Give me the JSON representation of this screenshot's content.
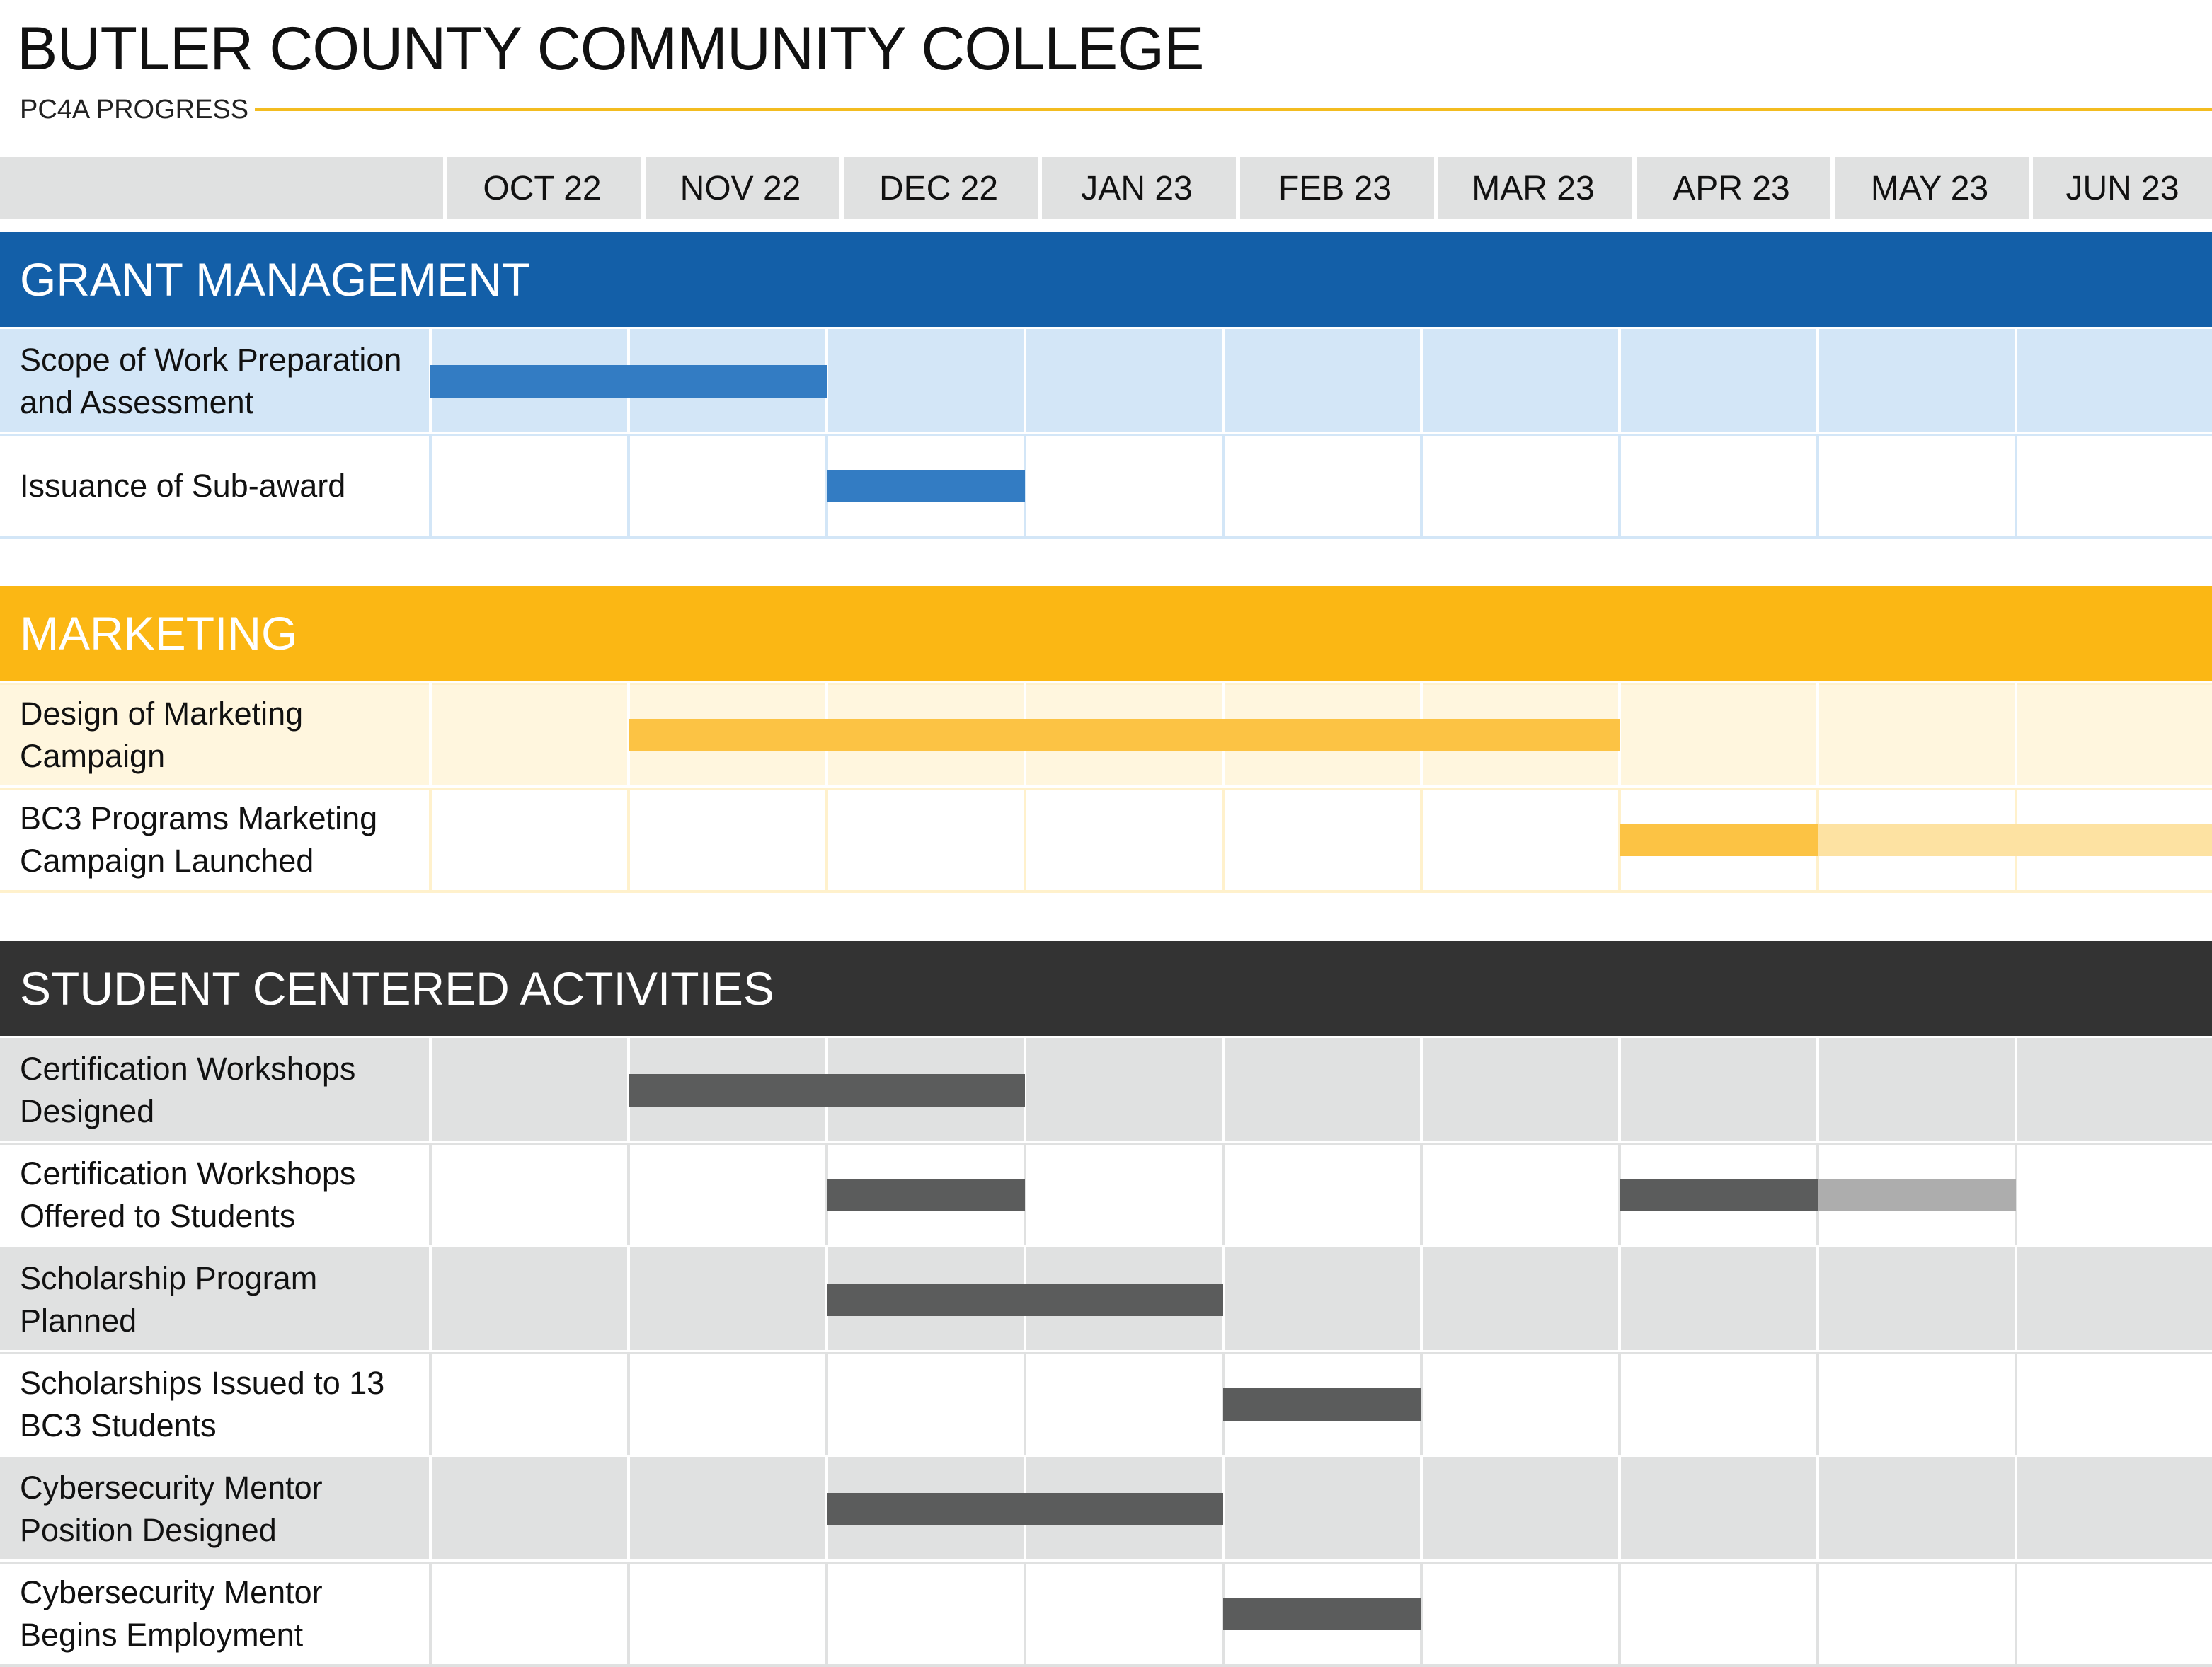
{
  "header": {
    "title": "BUTLER COUNTY COMMUNITY COLLEGE",
    "subtitle": "PC4A PROGRESS"
  },
  "chart_data": {
    "type": "gantt",
    "title": "BUTLER COUNTY COMMUNITY COLLEGE",
    "subtitle": "PC4A PROGRESS",
    "months": [
      "OCT 22",
      "NOV 22",
      "DEC 22",
      "JAN 23",
      "FEB 23",
      "MAR 23",
      "APR 23",
      "MAY 23",
      "JUN 23"
    ],
    "sections": [
      {
        "name": "GRANT MANAGEMENT",
        "color": "#135fa8",
        "bar_color": "#337cc3",
        "row_tint": "#d3e6f7",
        "grid_color": "#d3e6f7",
        "tasks": [
          {
            "name": "Scope of Work Preparation and Assessment",
            "lines": [
              "Scope of Work Preparation",
              "and Assessment"
            ],
            "segments": [
              {
                "start": 0,
                "end": 2,
                "status": "complete"
              }
            ]
          },
          {
            "name": "Issuance of Sub-award",
            "lines": [
              "Issuance of Sub-award"
            ],
            "segments": [
              {
                "start": 2,
                "end": 3,
                "status": "complete"
              }
            ]
          }
        ]
      },
      {
        "name": "MARKETING",
        "color": "#fbb714",
        "bar_color": "#fcc344",
        "light_bar_color": "#fde2a2",
        "row_tint": "#fff6de",
        "grid_color": "#fff1cc",
        "tasks": [
          {
            "name": "Design of Marketing Campaign",
            "lines": [
              "Design of Marketing",
              "Campaign"
            ],
            "segments": [
              {
                "start": 1,
                "end": 6,
                "status": "complete"
              }
            ]
          },
          {
            "name": "BC3 Programs Marketing Campaign Launched",
            "lines": [
              "BC3 Programs Marketing",
              "Campaign Launched"
            ],
            "segments": [
              {
                "start": 6,
                "end": 7,
                "status": "complete"
              },
              {
                "start": 7,
                "end": 9,
                "status": "planned"
              }
            ]
          }
        ]
      },
      {
        "name": "STUDENT CENTERED ACTIVITIES",
        "color": "#333333",
        "bar_color": "#5b5c5c",
        "light_bar_color": "#adadad",
        "row_tint": "#e0e1e1",
        "grid_color": "#e0e1e1",
        "tasks": [
          {
            "name": "Certification Workshops Designed",
            "lines": [
              "Certification Workshops",
              "Designed"
            ],
            "segments": [
              {
                "start": 1,
                "end": 3,
                "status": "complete"
              }
            ]
          },
          {
            "name": "Certification Workshops Offered to Students",
            "lines": [
              "Certification Workshops",
              "Offered to Students"
            ],
            "segments": [
              {
                "start": 2,
                "end": 3,
                "status": "complete"
              },
              {
                "start": 6,
                "end": 7,
                "status": "complete"
              },
              {
                "start": 7,
                "end": 8,
                "status": "planned"
              }
            ]
          },
          {
            "name": "Scholarship Program Planned",
            "lines": [
              "Scholarship Program",
              "Planned"
            ],
            "segments": [
              {
                "start": 2,
                "end": 4,
                "status": "complete"
              }
            ]
          },
          {
            "name": "Scholarships Issued to 13 BC3 Students",
            "lines": [
              "Scholarships Issued to 13",
              "BC3 Students"
            ],
            "segments": [
              {
                "start": 4,
                "end": 5,
                "status": "complete"
              }
            ]
          },
          {
            "name": "Cybersecurity Mentor Position Designed",
            "lines": [
              "Cybersecurity Mentor",
              "Position Designed"
            ],
            "segments": [
              {
                "start": 2,
                "end": 4,
                "status": "complete"
              }
            ]
          },
          {
            "name": "Cybersecurity Mentor Begins Employment",
            "lines": [
              "Cybersecurity Mentor",
              "Begins Employment"
            ],
            "segments": [
              {
                "start": 4,
                "end": 5,
                "status": "complete"
              }
            ]
          }
        ]
      }
    ]
  }
}
